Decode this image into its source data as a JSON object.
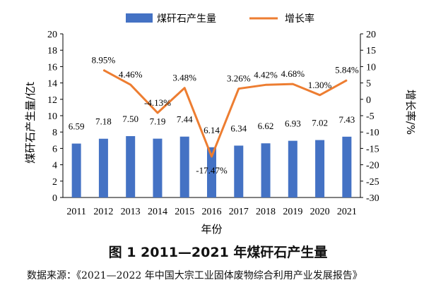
{
  "chart_data": {
    "type": "bar+line",
    "categories": [
      "2011",
      "2012",
      "2013",
      "2014",
      "2015",
      "2016",
      "2017",
      "2018",
      "2019",
      "2020",
      "2021"
    ],
    "series": [
      {
        "name": "煤矸石产生量",
        "type": "bar",
        "axis": "left",
        "color": "#4472C4",
        "values": [
          6.59,
          7.18,
          7.5,
          7.19,
          7.44,
          6.14,
          6.34,
          6.62,
          6.93,
          7.02,
          7.43
        ],
        "labels": [
          "6.59",
          "7.18",
          "7.50",
          "7.19",
          "7.44",
          "6.14",
          "6.34",
          "6.62",
          "6.93",
          "7.02",
          "7.43"
        ]
      },
      {
        "name": "增长率",
        "type": "line",
        "axis": "right",
        "color": "#ED7D31",
        "values": [
          null,
          8.95,
          4.46,
          -4.13,
          3.48,
          -17.47,
          3.26,
          4.42,
          4.68,
          1.3,
          5.84
        ],
        "labels": [
          "",
          "8.95%",
          "4.46%",
          "-4.13%",
          "3.48%",
          "-17.47%",
          "3.26%",
          "4.42%",
          "4.68%",
          "1.30%",
          "5.84%"
        ]
      }
    ],
    "xlabel": "年份",
    "ylabel": "煤矸石产生量/亿t",
    "y2label": "增长率/%",
    "ylim": [
      0,
      20
    ],
    "yticks": [
      "0",
      "2",
      "4",
      "6",
      "8",
      "10",
      "12",
      "14",
      "16",
      "18",
      "20"
    ],
    "y2lim": [
      -30,
      20
    ],
    "y2ticks": [
      "-30",
      "-25",
      "-20",
      "-15",
      "-10",
      "-5",
      "0",
      "5",
      "10",
      "15",
      "20"
    ],
    "grid": false,
    "legend_position": "top"
  },
  "caption": "图 1  2011—2021 年煤矸石产生量",
  "source": "数据来源：《2021—2022 年中国大宗工业固体废物综合利用产业发展报告》"
}
